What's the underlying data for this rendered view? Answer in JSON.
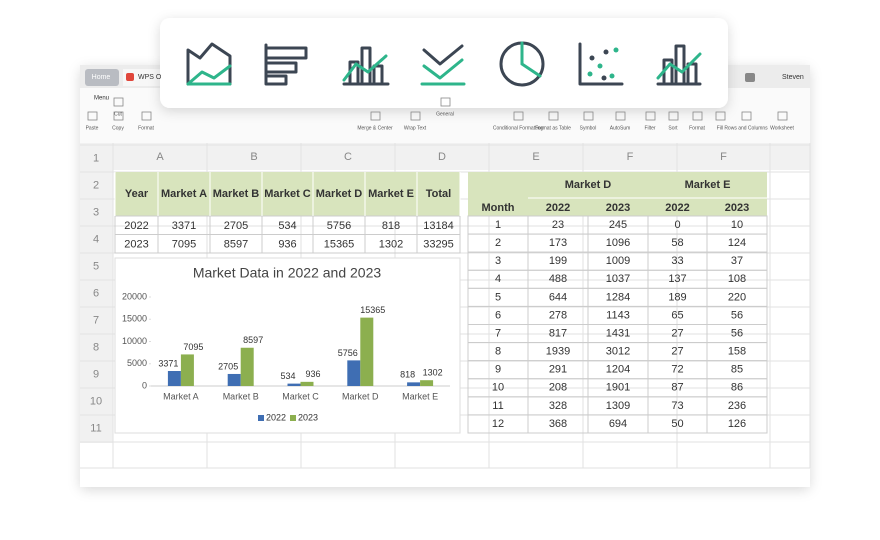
{
  "window": {
    "tabs": [
      "Home",
      "WPS O"
    ],
    "user": "Steven"
  },
  "toolbar": {
    "menu": "Menu",
    "labels": [
      "Paste",
      "Cut",
      "Copy",
      "Format",
      "Merge & Center",
      "Wrap Text",
      "General",
      "Conditional Formatting",
      "Format as Table",
      "Symbol",
      "AutoSum",
      "Filter",
      "Sort",
      "Format",
      "Fill",
      "Rows and Columns",
      "Worksheet"
    ]
  },
  "sheet": {
    "column_headers": [
      "A",
      "B",
      "C",
      "D",
      "E",
      "F",
      "F"
    ],
    "row_numbers": [
      1,
      2,
      3,
      4,
      5,
      6,
      7,
      8,
      9,
      10,
      11
    ],
    "left_table": {
      "header": [
        "Year",
        "Market A",
        "Market B",
        "Market C",
        "Market D",
        "Market E",
        "Total"
      ],
      "rows": [
        [
          2022,
          3371,
          2705,
          534,
          5756,
          818,
          13184
        ],
        [
          2023,
          7095,
          8597,
          936,
          15365,
          1302,
          33295
        ]
      ]
    },
    "right_table": {
      "group_headers": [
        "Market D",
        "Market E"
      ],
      "header": [
        "Month",
        "2022",
        "2023",
        "2022",
        "2023"
      ],
      "rows": [
        [
          1,
          23,
          245,
          0,
          10
        ],
        [
          2,
          173,
          1096,
          58,
          124
        ],
        [
          3,
          199,
          1009,
          33,
          37
        ],
        [
          4,
          488,
          1037,
          137,
          108
        ],
        [
          5,
          644,
          1284,
          189,
          220
        ],
        [
          6,
          278,
          1143,
          65,
          56
        ],
        [
          7,
          817,
          1431,
          27,
          56
        ],
        [
          8,
          1939,
          3012,
          27,
          158
        ],
        [
          9,
          291,
          1204,
          72,
          85
        ],
        [
          10,
          208,
          1901,
          87,
          86
        ],
        [
          11,
          328,
          1309,
          73,
          236
        ],
        [
          12,
          368,
          694,
          50,
          126
        ]
      ]
    }
  },
  "chart_data": {
    "type": "bar",
    "title": "Market Data in 2022 and 2023",
    "categories": [
      "Market A",
      "Market B",
      "Market C",
      "Market D",
      "Market E"
    ],
    "series": [
      {
        "name": "2022",
        "color": "#3f6eb3",
        "values": [
          3371,
          2705,
          534,
          5756,
          818
        ]
      },
      {
        "name": "2023",
        "color": "#8caf4f",
        "values": [
          7095,
          8597,
          936,
          15365,
          1302
        ]
      }
    ],
    "ylim": [
      0,
      20000
    ],
    "yticks": [
      0,
      5000,
      10000,
      15000,
      20000
    ],
    "grid": false,
    "legend": "bottom"
  }
}
